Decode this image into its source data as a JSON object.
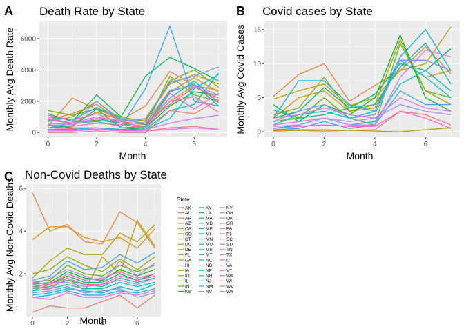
{
  "chart_data": [
    {
      "type": "line",
      "panel_tag": "A",
      "title": "Death Rate by State",
      "xlabel": "Month",
      "ylabel": "Monthly Avg Death Rate",
      "xlim": [
        -0.35,
        7.35
      ],
      "ylim": [
        -300,
        7100
      ],
      "xticks": [
        0,
        2,
        4,
        6
      ],
      "yticks": [
        0,
        2000,
        4000,
        6000
      ],
      "grid": true,
      "x": [
        0,
        1,
        2,
        3,
        4,
        5,
        6,
        7
      ],
      "series": [
        {
          "values": [
            300,
            250,
            200,
            150,
            100,
            300,
            400,
            200
          ]
        },
        {
          "values": [
            400,
            2200,
            1500,
            800,
            1700,
            3900,
            3000,
            2700
          ]
        },
        {
          "values": [
            800,
            1200,
            1800,
            700,
            500,
            2000,
            3000,
            2000
          ]
        },
        {
          "values": [
            900,
            600,
            1300,
            800,
            600,
            2600,
            3500,
            2600
          ]
        },
        {
          "values": [
            700,
            1000,
            2000,
            800,
            800,
            3100,
            3700,
            3100
          ]
        },
        {
          "values": [
            1400,
            1100,
            1500,
            1000,
            700,
            3300,
            4000,
            2900
          ]
        },
        {
          "values": [
            800,
            600,
            800,
            600,
            400,
            3600,
            2400,
            2000
          ]
        },
        {
          "values": [
            500,
            300,
            300,
            200,
            300,
            1700,
            2600,
            2400
          ]
        },
        {
          "values": [
            1200,
            700,
            2400,
            1000,
            3600,
            4800,
            4100,
            3300
          ]
        },
        {
          "values": [
            300,
            400,
            1500,
            300,
            400,
            2600,
            3100,
            1700
          ]
        },
        {
          "values": [
            600,
            500,
            900,
            600,
            200,
            1400,
            1800,
            3800
          ]
        },
        {
          "values": [
            200,
            200,
            300,
            200,
            200,
            900,
            2800,
            3700
          ]
        },
        {
          "values": [
            1000,
            800,
            1600,
            900,
            500,
            2200,
            3300,
            1900
          ]
        },
        {
          "values": [
            300,
            600,
            700,
            400,
            2800,
            6800,
            2000,
            1700
          ]
        },
        {
          "values": [
            800,
            600,
            2000,
            700,
            900,
            3200,
            3600,
            4200
          ]
        },
        {
          "values": [
            600,
            500,
            900,
            800,
            600,
            2700,
            3000,
            2400
          ]
        },
        {
          "values": [
            200,
            100,
            300,
            100,
            200,
            600,
            900,
            1100
          ]
        },
        {
          "values": [
            100,
            100,
            200,
            100,
            100,
            200,
            300,
            200
          ]
        },
        {
          "values": [
            900,
            600,
            1000,
            700,
            300,
            2500,
            1500,
            2500
          ]
        },
        {
          "values": [
            1100,
            800,
            1200,
            600,
            600,
            1800,
            2900,
            2200
          ]
        },
        {
          "values": [
            500,
            400,
            600,
            500,
            300,
            2000,
            2300,
            1300
          ]
        },
        {
          "values": [
            0,
            0,
            100,
            0,
            0,
            1400,
            1200,
            2100
          ]
        }
      ]
    },
    {
      "type": "line",
      "panel_tag": "B",
      "title": "Covid cases by State",
      "xlabel": "Month",
      "ylabel": "Monthly Avg Covid Cases",
      "xlim": [
        -0.35,
        7.35
      ],
      "ylim": [
        -0.8,
        16.2
      ],
      "xticks": [
        0,
        2,
        4,
        6
      ],
      "yticks": [
        0,
        5,
        10,
        15
      ],
      "grid": true,
      "x": [
        0,
        1,
        2,
        3,
        4,
        5,
        6,
        7
      ],
      "series": [
        {
          "values": [
            0.2,
            0.3,
            0.3,
            0.2,
            0.3,
            3.0,
            2.5,
            1.0
          ]
        },
        {
          "values": [
            5.2,
            8.4,
            10.0,
            4.5,
            6.8,
            9.0,
            12.5,
            8.5
          ]
        },
        {
          "values": [
            2.0,
            5.0,
            6.0,
            3.0,
            3.5,
            10.5,
            8.0,
            9.0
          ]
        },
        {
          "values": [
            4.8,
            6.0,
            7.0,
            3.8,
            5.0,
            9.0,
            10.0,
            15.4
          ]
        },
        {
          "values": [
            0.1,
            0.2,
            0.1,
            0.2,
            0.1,
            0.0,
            0.3,
            0.6
          ]
        },
        {
          "values": [
            2.5,
            3.5,
            8.0,
            3.0,
            4.0,
            13.5,
            6.0,
            4.0
          ]
        },
        {
          "values": [
            1.5,
            2.0,
            5.0,
            2.0,
            1.0,
            13.0,
            6.0,
            5.0
          ]
        },
        {
          "values": [
            4.0,
            1.5,
            4.0,
            2.5,
            5.0,
            14.2,
            5.0,
            3.0
          ]
        },
        {
          "values": [
            2.0,
            3.0,
            6.5,
            3.5,
            5.5,
            10.0,
            9.0,
            12.2
          ]
        },
        {
          "values": [
            3.2,
            2.0,
            2.5,
            3.5,
            4.0,
            9.5,
            13.0,
            7.0
          ]
        },
        {
          "values": [
            1.0,
            2.5,
            3.0,
            2.0,
            3.0,
            10.5,
            8.0,
            5.0
          ]
        },
        {
          "values": [
            0.5,
            1.0,
            2.0,
            1.0,
            1.5,
            7.0,
            9.0,
            6.0
          ]
        },
        {
          "values": [
            2.0,
            7.5,
            7.5,
            4.0,
            3.0,
            11.0,
            15.0,
            9.0
          ]
        },
        {
          "values": [
            0.3,
            0.5,
            1.5,
            0.5,
            1.0,
            6.0,
            4.0,
            4.0
          ]
        },
        {
          "values": [
            1.5,
            3.0,
            4.0,
            2.0,
            2.5,
            10.5,
            10.5,
            9.0
          ]
        },
        {
          "values": [
            0.8,
            1.0,
            2.0,
            1.5,
            2.0,
            4.0,
            3.0,
            2.5
          ]
        },
        {
          "values": [
            1.0,
            1.5,
            2.0,
            1.0,
            1.0,
            8.0,
            12.0,
            11.0
          ]
        },
        {
          "values": [
            2.0,
            2.5,
            3.5,
            2.5,
            2.0,
            5.0,
            3.5,
            3.0
          ]
        },
        {
          "values": [
            0.5,
            0.8,
            1.0,
            0.8,
            0.8,
            3.0,
            2.0,
            0.5
          ]
        }
      ]
    },
    {
      "type": "line",
      "panel_tag": "C",
      "title": "Non-Covid Deaths by State",
      "xlabel": "Month",
      "ylabel": "Monthly Avg Non-Covid Deaths",
      "xlim": [
        -0.35,
        7.35
      ],
      "ylim": [
        0.0,
        6.2
      ],
      "xticks": [
        0,
        2,
        4,
        6
      ],
      "yticks": [
        2,
        4,
        6
      ],
      "grid": true,
      "x": [
        0,
        1,
        2,
        3,
        4,
        5,
        6,
        7
      ],
      "series": [
        {
          "values": [
            0.2,
            0.5,
            0.4,
            0.4,
            0.7,
            1.0,
            0.4,
            1.0
          ]
        },
        {
          "values": [
            5.8,
            4.0,
            4.3,
            3.5,
            3.4,
            4.9,
            4.4,
            3.2
          ]
        },
        {
          "values": [
            3.6,
            4.2,
            4.2,
            3.7,
            3.5,
            3.7,
            3.2,
            4.1
          ]
        },
        {
          "values": [
            1.2,
            1.5,
            1.8,
            1.2,
            2.8,
            2.0,
            4.5,
            3.3
          ]
        },
        {
          "values": [
            1.8,
            2.6,
            3.2,
            2.9,
            2.9,
            3.9,
            3.5,
            4.3
          ]
        },
        {
          "values": [
            2.0,
            2.2,
            2.8,
            2.4,
            2.1,
            2.7,
            2.2,
            2.8
          ]
        },
        {
          "values": [
            1.6,
            1.7,
            2.4,
            2.0,
            1.9,
            2.4,
            2.1,
            2.4
          ]
        },
        {
          "values": [
            1.5,
            1.6,
            2.1,
            1.8,
            1.7,
            2.2,
            1.9,
            2.2
          ]
        },
        {
          "values": [
            1.4,
            1.5,
            1.9,
            1.6,
            1.6,
            2.0,
            1.7,
            2.0
          ]
        },
        {
          "values": [
            1.3,
            1.4,
            1.7,
            1.5,
            1.4,
            1.8,
            1.6,
            1.8
          ]
        },
        {
          "values": [
            1.2,
            1.3,
            1.5,
            1.3,
            1.3,
            1.6,
            1.4,
            1.6
          ]
        },
        {
          "values": [
            1.0,
            1.1,
            1.3,
            1.2,
            1.1,
            1.4,
            1.2,
            1.5
          ]
        },
        {
          "values": [
            0.9,
            1.0,
            1.2,
            1.0,
            1.0,
            1.2,
            1.1,
            1.3
          ]
        },
        {
          "values": [
            1.7,
            1.9,
            2.6,
            2.2,
            2.3,
            2.9,
            2.5,
            3.0
          ]
        },
        {
          "values": [
            1.1,
            1.2,
            1.4,
            1.1,
            1.2,
            1.3,
            0.9,
            1.1
          ]
        },
        {
          "values": [
            1.5,
            1.8,
            2.2,
            1.9,
            1.6,
            2.6,
            1.9,
            2.5
          ]
        },
        {
          "values": [
            1.3,
            1.6,
            1.6,
            1.4,
            1.5,
            1.7,
            1.5,
            1.8
          ]
        },
        {
          "values": [
            0.9,
            0.8,
            1.1,
            0.9,
            0.9,
            1.1,
            1.0,
            1.2
          ]
        },
        {
          "values": [
            1.6,
            1.5,
            2.0,
            1.7,
            1.8,
            2.1,
            1.8,
            2.0
          ]
        },
        {
          "values": [
            1.4,
            1.3,
            1.8,
            1.5,
            1.5,
            1.9,
            1.7,
            1.9
          ]
        }
      ]
    }
  ],
  "legend": {
    "title": "State",
    "placement": "right of panel C",
    "entries": [
      "AK",
      "AL",
      "AR",
      "AZ",
      "CA",
      "CO",
      "CT",
      "DC",
      "DE",
      "FL",
      "GA",
      "HI",
      "IA",
      "ID",
      "IL",
      "IN",
      "KS",
      "KY",
      "LA",
      "MA",
      "MD",
      "ME",
      "MI",
      "MN",
      "MO",
      "MS",
      "MT",
      "NC",
      "ND",
      "NE",
      "NH",
      "NJ",
      "NM",
      "NV",
      "NY",
      "OH",
      "OK",
      "OR",
      "PA",
      "RI",
      "SC",
      "SD",
      "TN",
      "TX",
      "UT",
      "VA",
      "VT",
      "WA",
      "WI",
      "WV",
      "WY"
    ]
  },
  "palette": [
    "#f8766d",
    "#ec823c",
    "#de8c00",
    "#c59900",
    "#ae9f00",
    "#8fa500",
    "#64b200",
    "#00b81f",
    "#00bc52",
    "#00c08b",
    "#00bfc4",
    "#00bbdb",
    "#00b4f0",
    "#35a2ff",
    "#7698ff",
    "#a58aff",
    "#c77cff",
    "#e76bf3",
    "#fd61d1",
    "#ff62bc",
    "#ff6c91",
    "#f17d74"
  ],
  "style": {
    "panel_bg": "#ebebeb",
    "grid_color": "#ffffff",
    "axis_text_color": "#4d4d4d"
  }
}
